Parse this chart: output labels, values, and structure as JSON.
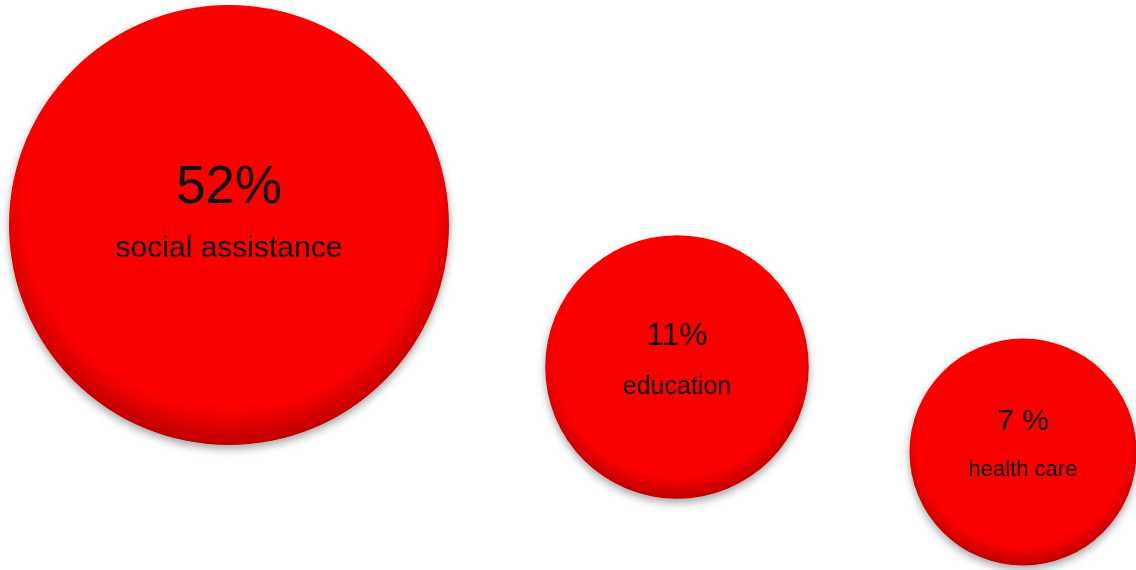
{
  "chart_data": {
    "type": "other",
    "categories": [
      "social assistance",
      "education",
      "health care"
    ],
    "values": [
      52,
      11,
      7
    ],
    "value_labels": [
      "52%",
      "11%",
      "7 %"
    ],
    "color": "#fb0606"
  }
}
